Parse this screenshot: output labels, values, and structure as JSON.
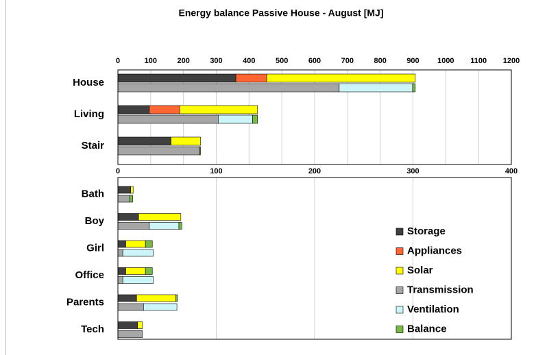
{
  "title": "Energy balance Passive House - August [MJ]",
  "legend": [
    {
      "name": "Storage",
      "color": "#404040"
    },
    {
      "name": "Appliances",
      "color": "#ff6633"
    },
    {
      "name": "Solar",
      "color": "#ffff00"
    },
    {
      "name": "Transmission",
      "color": "#a6a6a6"
    },
    {
      "name": "Ventilation",
      "color": "#ccf5fa"
    },
    {
      "name": "Balance",
      "color": "#77bb44"
    }
  ],
  "chart_data": [
    {
      "type": "bar",
      "orientation": "horizontal",
      "stacked": true,
      "categories": [
        "House"
      ],
      "xlim": [
        0,
        1200
      ],
      "xticks": [
        0,
        100,
        200,
        300,
        400,
        500,
        600,
        700,
        800,
        900,
        1000,
        1100,
        1200
      ],
      "grid": true,
      "series": [
        {
          "values": [
            360
          ],
          "values2": [
            null
          ]
        },
        {
          "values": [
            94
          ],
          "values2": [
            null
          ]
        },
        {
          "values": [
            453
          ],
          "values2": [
            null
          ]
        },
        {
          "values": [
            null
          ],
          "values2": [
            675
          ]
        },
        {
          "values": [
            null
          ],
          "values2": [
            224
          ]
        },
        {
          "values": [
            null
          ],
          "values2": [
            8
          ]
        }
      ]
    },
    {
      "type": "bar",
      "orientation": "horizontal",
      "stacked": true,
      "categories": [
        "Living",
        "Stair"
      ],
      "xlim": [
        0,
        400
      ],
      "xticks": [
        0,
        100,
        200,
        300,
        400
      ],
      "grid": true,
      "series": [
        {
          "values": [
            32,
            54
          ],
          "values2": [
            null,
            null
          ]
        },
        {
          "values": [
            31,
            null
          ],
          "values2": [
            null,
            null
          ]
        },
        {
          "values": [
            79,
            30
          ],
          "values2": [
            null,
            null
          ]
        },
        {
          "values": [
            null,
            null
          ],
          "values2": [
            102,
            83
          ]
        },
        {
          "values": [
            null,
            null
          ],
          "values2": [
            35,
            null
          ]
        },
        {
          "values": [
            null,
            null
          ],
          "values2": [
            5,
            1
          ]
        }
      ]
    },
    {
      "type": "bar",
      "orientation": "horizontal",
      "stacked": true,
      "categories": [
        "Bath",
        "Boy",
        "Girl",
        "Office",
        "Parents",
        "Tech"
      ],
      "xlim": [
        0,
        400
      ],
      "grid": true,
      "series": [
        {
          "values": [
            13,
            21,
            8,
            8,
            19,
            20
          ],
          "values2": [
            null,
            null,
            null,
            null,
            null,
            null
          ]
        },
        {
          "values": [
            null,
            null,
            null,
            null,
            null,
            null
          ],
          "values2": [
            null,
            null,
            null,
            null,
            null,
            null
          ]
        },
        {
          "values": [
            2.5,
            43,
            20,
            20,
            40,
            5
          ],
          "values2": [
            null,
            null,
            null,
            null,
            null,
            null
          ]
        },
        {
          "values": [
            null,
            null,
            null,
            null,
            null,
            null
          ],
          "values2": [
            12,
            32,
            5,
            5,
            26,
            25
          ]
        },
        {
          "values": [
            null,
            null,
            null,
            null,
            null,
            null
          ],
          "values2": [
            null,
            30,
            31,
            31,
            34,
            null
          ]
        },
        {
          "values": [
            null,
            null,
            7,
            7,
            1.5,
            null
          ],
          "values2": [
            3,
            3,
            null,
            null,
            null,
            null
          ]
        }
      ]
    }
  ]
}
